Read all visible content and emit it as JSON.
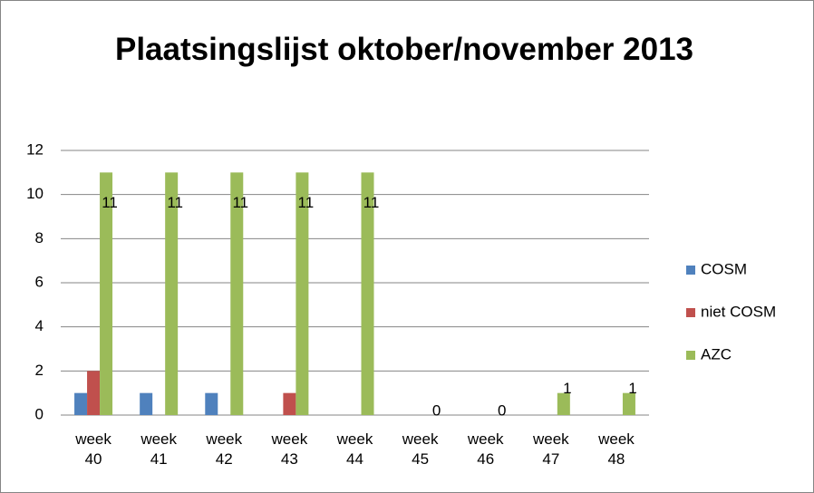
{
  "chart_data": {
    "type": "bar",
    "title": "Plaatsingslijst oktober/november 2013",
    "categories": [
      "week 40",
      "week 41",
      "week 42",
      "week 43",
      "week 44",
      "week 45",
      "week 46",
      "week 47",
      "week 48"
    ],
    "series": [
      {
        "name": "COSM",
        "color": "#4f81bd",
        "values": [
          1,
          1,
          1,
          0,
          0,
          0,
          0,
          0,
          0
        ]
      },
      {
        "name": "niet COSM",
        "color": "#c0504d",
        "values": [
          2,
          0,
          0,
          1,
          0,
          0,
          0,
          0,
          0
        ]
      },
      {
        "name": "AZC",
        "color": "#9bbb59",
        "values": [
          11,
          11,
          11,
          11,
          11,
          0,
          0,
          1,
          1
        ],
        "data_labels": true
      }
    ],
    "ylim": [
      0,
      12
    ],
    "yticks": [
      0,
      2,
      4,
      6,
      8,
      10,
      12
    ],
    "grid": true,
    "legend": "right"
  }
}
